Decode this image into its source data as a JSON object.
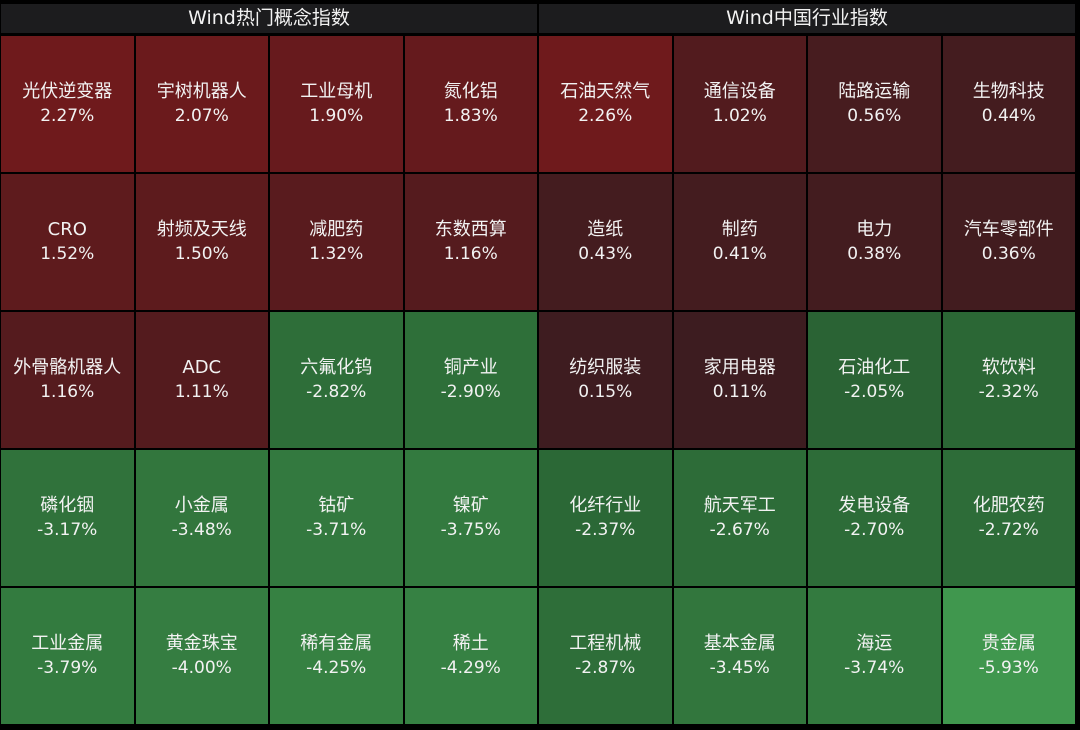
{
  "panels": [
    {
      "title": "Wind热门概念指数",
      "cells": [
        {
          "name": "光伏逆变器",
          "value": "2.27%"
        },
        {
          "name": "宇树机器人",
          "value": "2.07%"
        },
        {
          "name": "工业母机",
          "value": "1.90%"
        },
        {
          "name": "氮化铝",
          "value": "1.83%"
        },
        {
          "name": "CRO",
          "value": "1.52%"
        },
        {
          "name": "射频及天线",
          "value": "1.50%"
        },
        {
          "name": "减肥药",
          "value": "1.32%"
        },
        {
          "name": "东数西算",
          "value": "1.16%"
        },
        {
          "name": "外骨骼机器人",
          "value": "1.16%"
        },
        {
          "name": "ADC",
          "value": "1.11%"
        },
        {
          "name": "六氟化钨",
          "value": "-2.82%"
        },
        {
          "name": "铜产业",
          "value": "-2.90%"
        },
        {
          "name": "磷化铟",
          "value": "-3.17%"
        },
        {
          "name": "小金属",
          "value": "-3.48%"
        },
        {
          "name": "钴矿",
          "value": "-3.71%"
        },
        {
          "name": "镍矿",
          "value": "-3.75%"
        },
        {
          "name": "工业金属",
          "value": "-3.79%"
        },
        {
          "name": "黄金珠宝",
          "value": "-4.00%"
        },
        {
          "name": "稀有金属",
          "value": "-4.25%"
        },
        {
          "name": "稀土",
          "value": "-4.29%"
        }
      ]
    },
    {
      "title": "Wind中国行业指数",
      "cells": [
        {
          "name": "石油天然气",
          "value": "2.26%"
        },
        {
          "name": "通信设备",
          "value": "1.02%"
        },
        {
          "name": "陆路运输",
          "value": "0.56%"
        },
        {
          "name": "生物科技",
          "value": "0.44%"
        },
        {
          "name": "造纸",
          "value": "0.43%"
        },
        {
          "name": "制药",
          "value": "0.41%"
        },
        {
          "name": "电力",
          "value": "0.38%"
        },
        {
          "name": "汽车零部件",
          "value": "0.36%"
        },
        {
          "name": "纺织服装",
          "value": "0.15%"
        },
        {
          "name": "家用电器",
          "value": "0.11%"
        },
        {
          "name": "石油化工",
          "value": "-2.05%"
        },
        {
          "name": "软饮料",
          "value": "-2.32%"
        },
        {
          "name": "化纤行业",
          "value": "-2.37%"
        },
        {
          "name": "航天军工",
          "value": "-2.67%"
        },
        {
          "name": "发电设备",
          "value": "-2.70%"
        },
        {
          "name": "化肥农药",
          "value": "-2.72%"
        },
        {
          "name": "工程机械",
          "value": "-2.87%"
        },
        {
          "name": "基本金属",
          "value": "-3.45%"
        },
        {
          "name": "海运",
          "value": "-3.74%"
        },
        {
          "name": "贵金属",
          "value": "-5.93%"
        }
      ]
    }
  ]
}
